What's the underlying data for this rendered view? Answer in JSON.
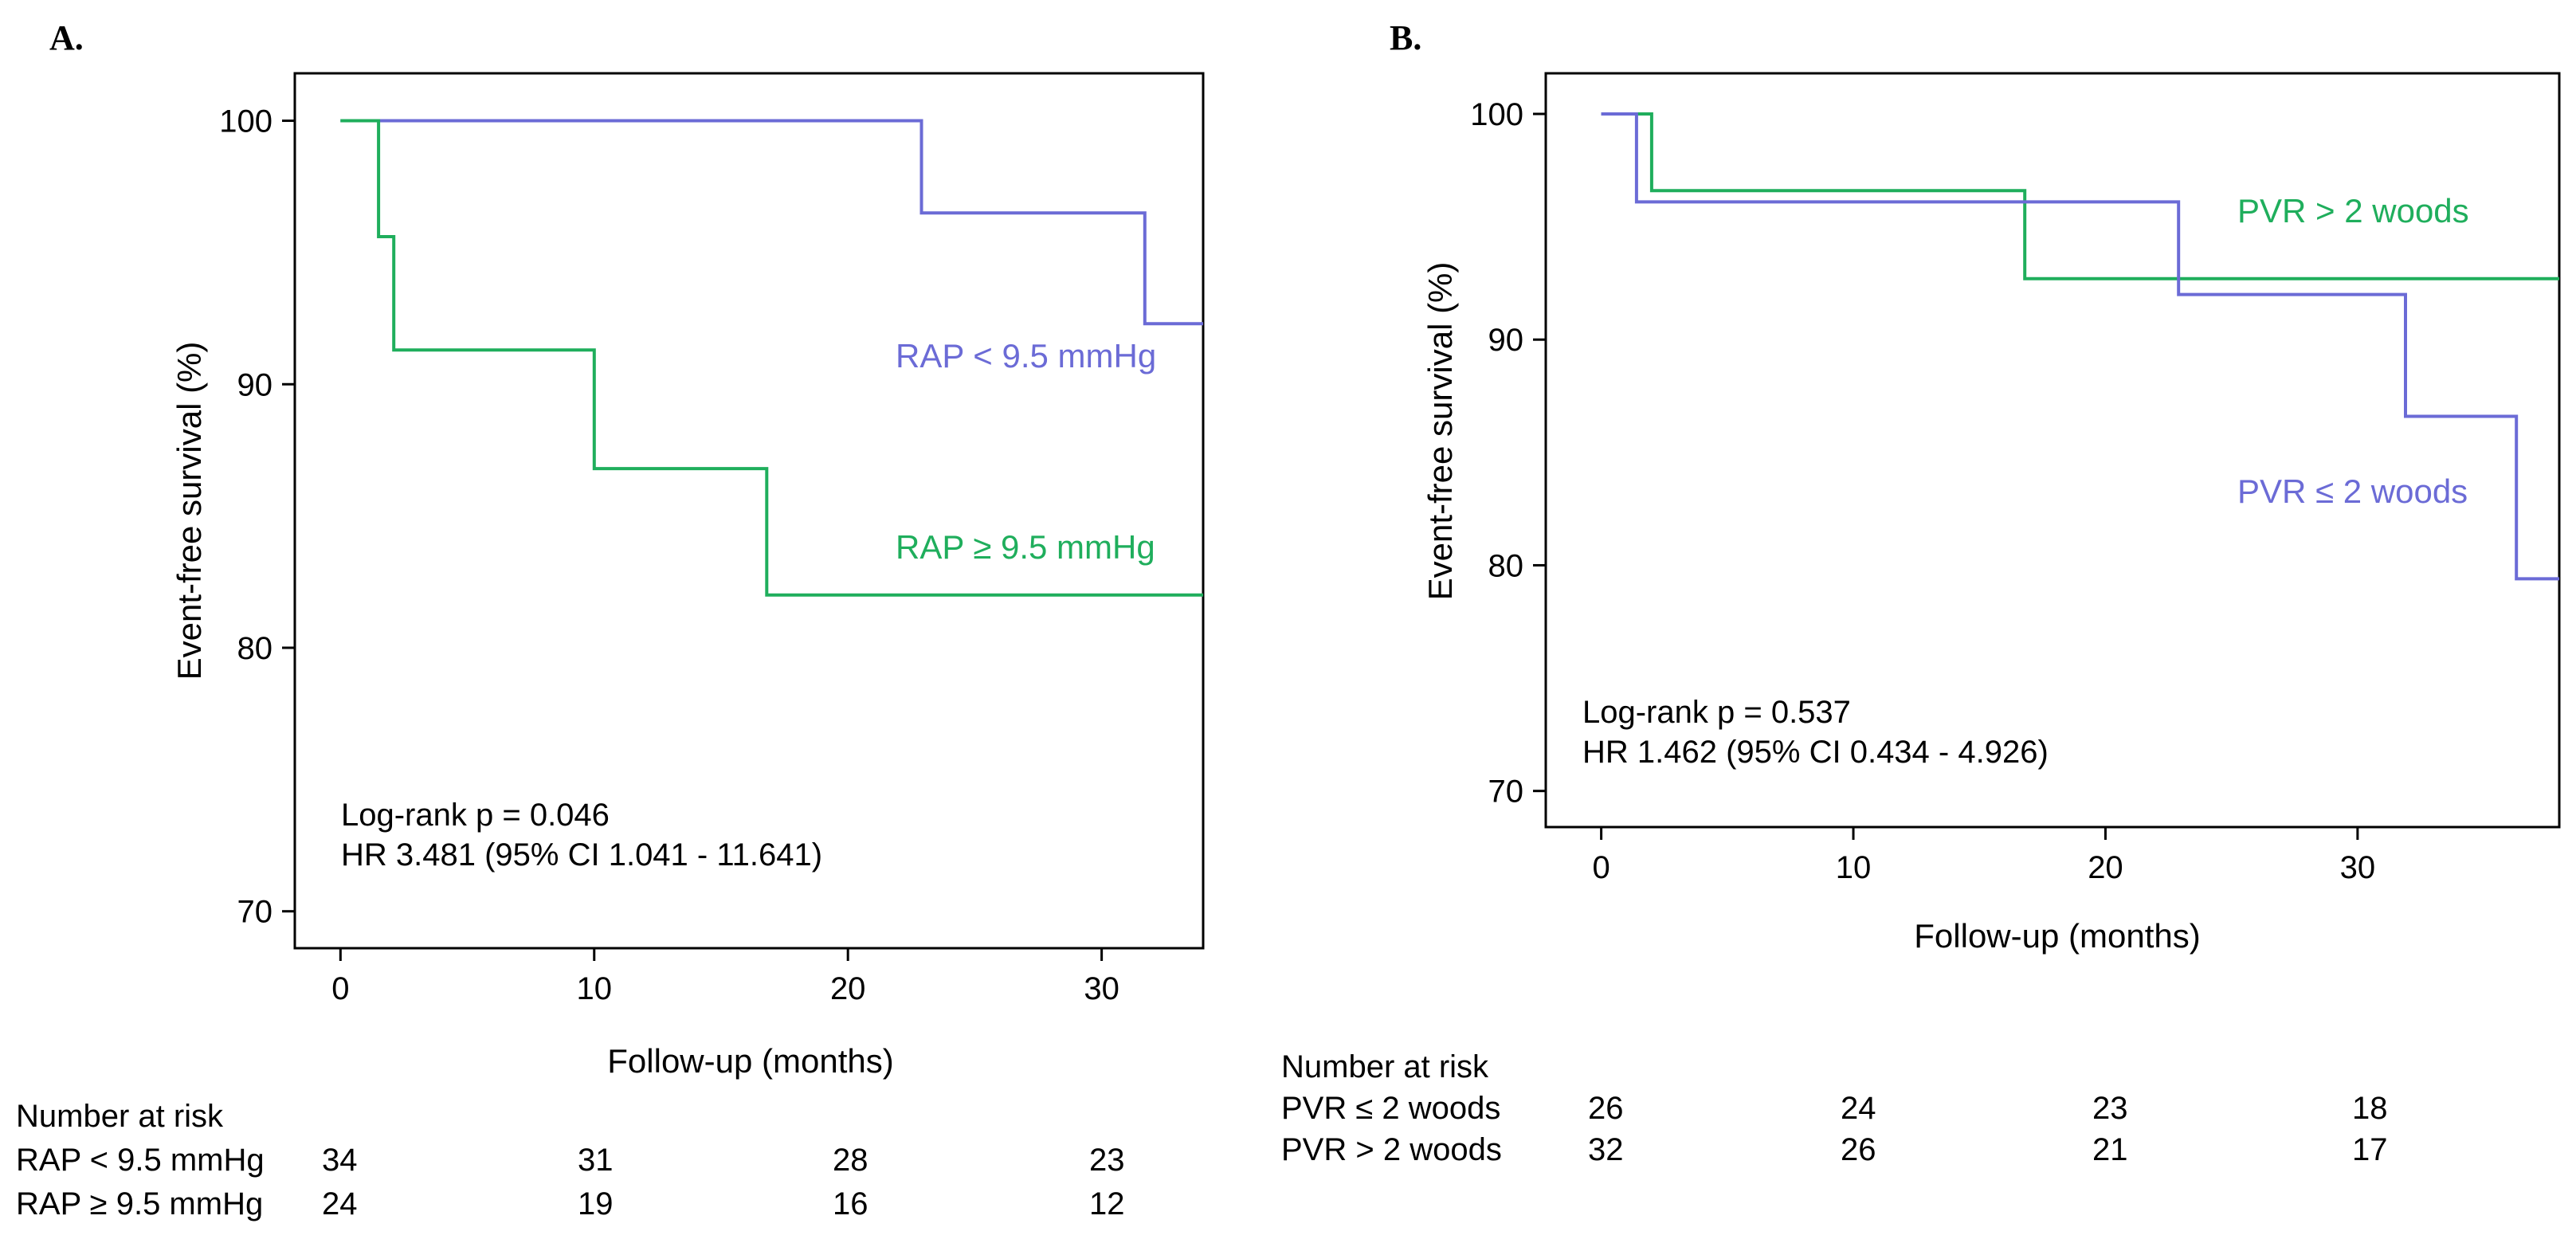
{
  "chart_data": [
    {
      "panel": "A.",
      "type": "line",
      "subtype": "kaplan-meier step",
      "xlabel": "Follow-up (months)",
      "ylabel": "Event-free survival (%)",
      "xlim": [
        -1.8,
        34
      ],
      "ylim": [
        68.6,
        101.8
      ],
      "x_ticks": [
        0,
        10,
        20,
        30
      ],
      "y_ticks": [
        70,
        80,
        90,
        100
      ],
      "annotation_lines": [
        "Log-rank p = 0.046",
        "HR 3.481 (95% CI 1.041 - 11.641)"
      ],
      "series": [
        {
          "name": "RAP < 9.5 mmHg",
          "color": "#6b6bd6",
          "points": [
            [
              0,
              100
            ],
            [
              22.9,
              100
            ],
            [
              22.9,
              96.5
            ],
            [
              31.7,
              96.5
            ],
            [
              31.7,
              92.3
            ],
            [
              34,
              92.3
            ]
          ]
        },
        {
          "name": "RAP ≥ 9.5 mmHg",
          "color": "#1fae5c",
          "points": [
            [
              0,
              100
            ],
            [
              1.5,
              100
            ],
            [
              1.5,
              95.6
            ],
            [
              2.1,
              95.6
            ],
            [
              2.1,
              91.3
            ],
            [
              10,
              91.3
            ],
            [
              10,
              86.8
            ],
            [
              16.8,
              86.8
            ],
            [
              16.8,
              82
            ],
            [
              34,
              82
            ]
          ]
        }
      ],
      "risk_table": {
        "title": "Number at risk",
        "rows": [
          {
            "label": "RAP < 9.5 mmHg",
            "values": [
              "34",
              "31",
              "28",
              "23"
            ]
          },
          {
            "label": "RAP ≥ 9.5 mmHg",
            "values": [
              "24",
              "19",
              "16",
              "12"
            ]
          }
        ]
      }
    },
    {
      "panel": "B.",
      "type": "line",
      "subtype": "kaplan-meier step",
      "xlabel": "Follow-up (months)",
      "ylabel": "Event-free survival (%)",
      "xlim": [
        -2.2,
        38
      ],
      "ylim": [
        68.4,
        101.8
      ],
      "x_ticks": [
        0,
        10,
        20,
        30
      ],
      "y_ticks": [
        70,
        80,
        90,
        100
      ],
      "annotation_lines": [
        "Log-rank p = 0.537",
        "HR 1.462 (95% CI 0.434 - 4.926)"
      ],
      "series": [
        {
          "name": "PVR > 2 woods",
          "color": "#1fae5c",
          "points": [
            [
              0,
              100
            ],
            [
              2,
              100
            ],
            [
              2,
              96.6
            ],
            [
              16.8,
              96.6
            ],
            [
              16.8,
              92.7
            ],
            [
              38,
              92.7
            ]
          ]
        },
        {
          "name": "PVR ≤ 2 woods",
          "color": "#6b6bd6",
          "points": [
            [
              0,
              100
            ],
            [
              1.4,
              100
            ],
            [
              1.4,
              96.1
            ],
            [
              22.9,
              96.1
            ],
            [
              22.9,
              92
            ],
            [
              31.9,
              92
            ],
            [
              31.9,
              86.6
            ],
            [
              36.3,
              86.6
            ],
            [
              36.3,
              79.4
            ],
            [
              38,
              79.4
            ]
          ]
        }
      ],
      "risk_table": {
        "title": "Number at risk",
        "rows": [
          {
            "label": "PVR ≤ 2 woods",
            "values": [
              "26",
              "24",
              "23",
              "18"
            ]
          },
          {
            "label": "PVR > 2 woods",
            "values": [
              "32",
              "26",
              "21",
              "17"
            ]
          }
        ]
      }
    }
  ]
}
